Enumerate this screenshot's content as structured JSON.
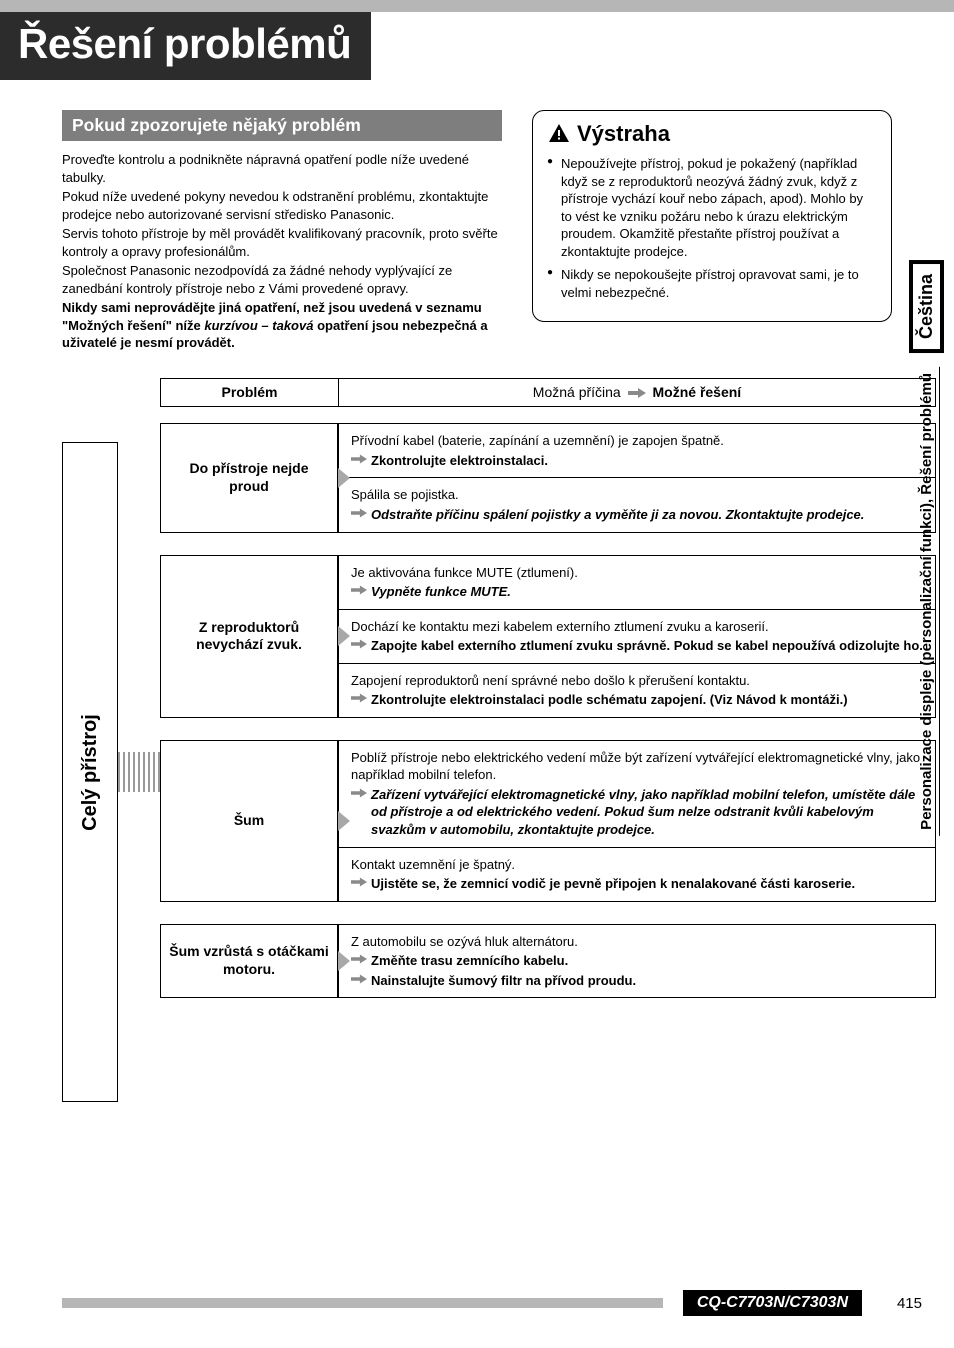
{
  "colors": {
    "topbar": "#b6b6b6",
    "title_bg": "#2c2c2c",
    "title_fg": "#ffffff",
    "subheader_bg": "#7e7e7e",
    "subheader_fg": "#ffffff",
    "border": "#000000",
    "wedge": "#a8a8a8",
    "arrow": "#8a8a8a",
    "hatch": "#999999",
    "page_bg": "#ffffff",
    "text": "#000000"
  },
  "typography": {
    "title_fontsize": 42,
    "subheader_fontsize": 17.5,
    "body_fontsize": 13,
    "table_header_fontsize": 14,
    "vert_tab_fontsize": 20,
    "side_lang_fontsize": 18,
    "side_section_fontsize": 15,
    "footer_model_fontsize": 16,
    "footer_page_fontsize": 15
  },
  "page_title": "Řešení problémů",
  "subheader": "Pokud zpozorujete nějaký problém",
  "intro": {
    "p1": "Proveďte kontrolu a podnikněte nápravná opatření podle níže uvedené tabulky.",
    "p2": "Pokud níže uvedené pokyny nevedou k odstranění problému, zkontaktujte prodejce nebo autorizované servisní středisko Panasonic.",
    "p3": "Servis tohoto přístroje by měl provádět kvalifikovaný pracovník, proto svěřte kontroly a opravy profesionálům.",
    "p4": "Společnost Panasonic nezodpovídá za žádné nehody vyplývající ze zanedbání kontroly přístroje nebo z Vámi provedené opravy.",
    "p5_a": "Nikdy sami neprovádějte jiná opatření, než jsou uvedená v seznamu \"Možných řešení\" níže ",
    "p5_b": "kurzívou – taková",
    "p5_c": " opatření jsou nebezpečná a uživatelé je nesmí provádět."
  },
  "warning": {
    "heading": "Výstraha",
    "items": [
      "Nepoužívejte přístroj, pokud je pokažený (například když se z reproduktorů neozývá žádný zvuk, když z přístroje vychází kouř nebo zápach, apod). Mohlo by to vést ke vzniku požáru nebo k úrazu elektrickým proudem. Okamžitě přestaňte přístroj používat a zkontaktujte prodejce.",
      "Nikdy se nepokoušejte přístroj opravovat sami, je to velmi nebezpečné."
    ]
  },
  "table": {
    "header_problem": "Problém",
    "header_cause_a": "Možná příčina",
    "header_cause_b": "Možné řešení",
    "vert_tab": "Celý přístroj",
    "rows": [
      {
        "problem": "Do přístroje nejde proud",
        "causes": [
          {
            "cause": "Přívodní kabel (baterie, zapínání a uzemnění) je zapojen špatně.",
            "solutions": [
              {
                "text": "Zkontrolujte elektroinstalaci.",
                "italic": false
              }
            ]
          },
          {
            "cause": "Spálila se pojistka.",
            "solutions": [
              {
                "text": "Odstraňte příčinu spálení pojistky a vyměňte ji za novou. Zkontaktujte prodejce.",
                "italic": true
              }
            ]
          }
        ]
      },
      {
        "problem": "Z reproduktorů nevychází zvuk.",
        "causes": [
          {
            "cause": "Je aktivována funkce MUTE (ztlumení).",
            "solutions": [
              {
                "text": "Vypněte funkce MUTE.",
                "italic": true
              }
            ]
          },
          {
            "cause": "Dochází ke kontaktu mezi kabelem externího ztlumení zvuku a karoserií.",
            "solutions": [
              {
                "text": "Zapojte kabel externího ztlumení zvuku správně. Pokud se kabel nepoužívá odizolujte ho.",
                "italic": false
              }
            ]
          },
          {
            "cause": "Zapojení reproduktorů není správné nebo došlo k přerušení kontaktu.",
            "solutions": [
              {
                "text": "Zkontrolujte elektroinstalaci podle schématu zapojení. (Viz Návod k montáži.)",
                "italic": false
              }
            ]
          }
        ]
      },
      {
        "problem": "Šum",
        "causes": [
          {
            "cause": "Poblíž přístroje nebo elektrického vedení může být zařízení vytvářející elektromagnetické vlny, jako například mobilní telefon.",
            "solutions": [
              {
                "text": "Zařízení vytvářející elektromagnetické vlny, jako například mobilní telefon, umístěte dále od přístroje a od elektrického vedení. Pokud šum nelze odstranit kvůli kabelovým svazkům v automobilu, zkontaktujte prodejce.",
                "italic": true
              }
            ]
          },
          {
            "cause": "Kontakt uzemnění je špatný.",
            "solutions": [
              {
                "text": "Ujistěte se, že zemnicí vodič je pevně připojen k nenalakované části karoserie.",
                "italic": false
              }
            ]
          }
        ]
      },
      {
        "problem": "Šum vzrůstá s otáčkami motoru.",
        "causes": [
          {
            "cause": "Z automobilu se ozývá hluk alternátoru.",
            "solutions": [
              {
                "text": "Změňte trasu zemnícího kabelu.",
                "italic": false
              },
              {
                "text": "Nainstalujte šumový filtr na přívod proudu.",
                "italic": false
              }
            ]
          }
        ]
      }
    ]
  },
  "side_tabs": {
    "lang": "Čeština",
    "section": "Personalizace displeje (personalizační funkci), Řešení problémů"
  },
  "footer": {
    "model": "CQ-C7703N/C7303N",
    "page": "415"
  }
}
